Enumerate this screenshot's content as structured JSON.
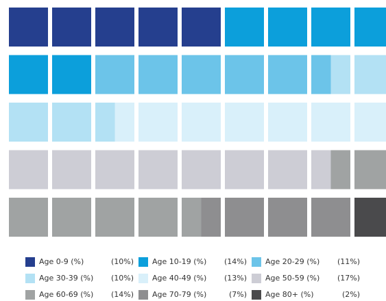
{
  "chart_data": {
    "type": "waffle",
    "categories": [
      "Age 0-9 (%)",
      "Age 10-19 (%)",
      "Age 20-29 (%)",
      "Age 30-39 (%)",
      "Age 40-49 (%)",
      "Age 50-59 (%)",
      "Age 60-69 (%)",
      "Age 70-79 (%)",
      "Age 80+ (%)"
    ],
    "values": [
      10,
      14,
      11,
      10,
      13,
      17,
      14,
      7,
      2
    ],
    "value_labels": [
      "(10%)",
      "(14%)",
      "(11%)",
      "(10%)",
      "(13%)",
      "(17%)",
      "(14%)",
      "(7%)",
      "(2%)"
    ],
    "colors": [
      "#253f8e",
      "#0c9fdb",
      "#6cc4e9",
      "#b3e1f4",
      "#d9f0fa",
      "#cdcdd5",
      "#a0a3a3",
      "#8e8e90",
      "#4a4a4c"
    ]
  }
}
